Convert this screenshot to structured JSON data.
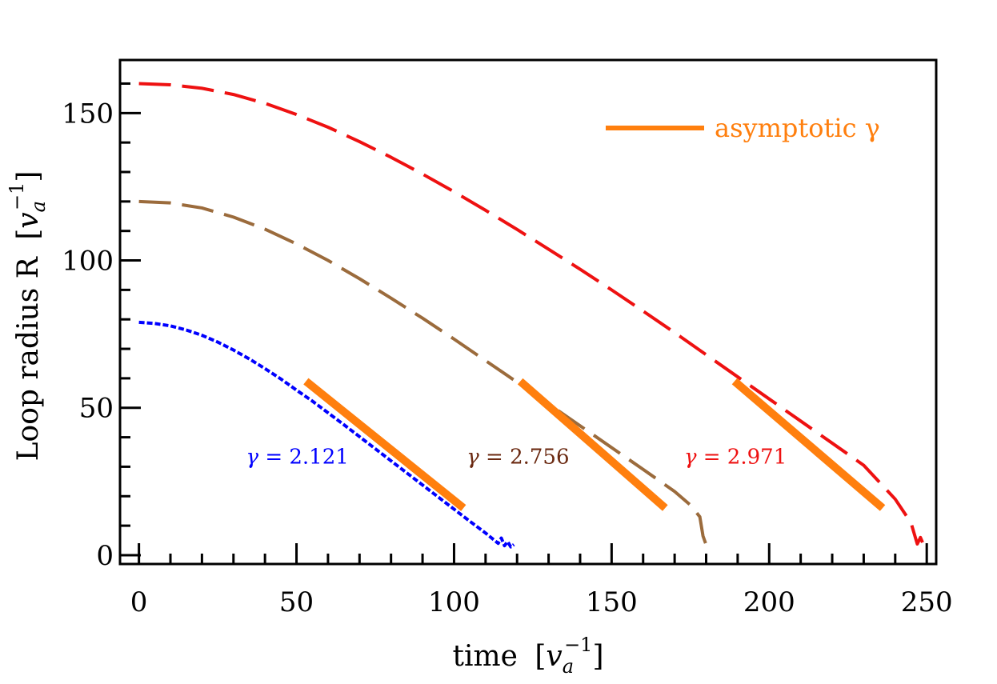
{
  "chart_data": {
    "type": "line",
    "title": "",
    "xlabel": "time",
    "xlabel_unit_base": "v",
    "xlabel_unit_sub": "a",
    "xlabel_unit_sup": "−1",
    "ylabel": "Loop radius R",
    "ylabel_unit_base": "v",
    "ylabel_unit_sub": "a",
    "ylabel_unit_sup": "−1",
    "xlim": [
      -6,
      253
    ],
    "ylim": [
      -3,
      168
    ],
    "xticks": [
      0,
      50,
      100,
      150,
      200,
      250
    ],
    "xtick_labels": [
      "0",
      "50",
      "100",
      "150",
      "200",
      "250"
    ],
    "yticks": [
      0,
      50,
      100,
      150
    ],
    "ytick_labels": [
      "0",
      "50",
      "100",
      "150"
    ],
    "grid": false,
    "legend": {
      "position": "top-right",
      "entries": [
        {
          "name": "asymptotic γ",
          "color": "#ff7f0e"
        }
      ]
    },
    "series": [
      {
        "color": "#0000ff",
        "style": "dotted",
        "x": [
          0,
          5,
          10,
          15,
          20,
          25,
          30,
          35,
          40,
          45,
          50,
          55,
          60,
          65,
          70,
          75,
          80,
          85,
          90,
          95,
          100,
          105,
          110,
          114,
          115,
          116,
          117,
          118,
          119
        ],
        "y": [
          79,
          78.6,
          77.8,
          76.4,
          74.6,
          72.3,
          69.6,
          66.6,
          63.3,
          59.8,
          56.0,
          52.3,
          48.3,
          44.3,
          40.2,
          36.1,
          32.0,
          27.9,
          23.8,
          19.7,
          15.6,
          11.5,
          7.5,
          4.0,
          5.8,
          3.2,
          4.6,
          2.8,
          3.6
        ]
      },
      {
        "color": "#9b6b3c",
        "style": "dashed",
        "x": [
          0,
          10,
          20,
          30,
          40,
          50,
          60,
          70,
          80,
          90,
          100,
          110,
          120,
          130,
          140,
          150,
          160,
          170,
          175,
          178,
          179,
          180,
          181
        ],
        "y": [
          120,
          119.5,
          117.8,
          114.7,
          110.6,
          105.6,
          100,
          93.8,
          87.2,
          80.4,
          73.3,
          66.0,
          58.7,
          51.3,
          43.9,
          36.5,
          29.1,
          21.6,
          17.0,
          13.0,
          6.5,
          3.5,
          1.5
        ]
      },
      {
        "color": "#ee1111",
        "style": "dashed",
        "x": [
          0,
          10,
          20,
          30,
          40,
          50,
          60,
          70,
          80,
          90,
          100,
          110,
          120,
          130,
          140,
          150,
          160,
          170,
          180,
          190,
          200,
          210,
          220,
          230,
          240,
          245,
          247,
          248,
          249
        ],
        "y": [
          160,
          159.6,
          158.4,
          156.3,
          153.3,
          149.5,
          145.2,
          140.3,
          135.0,
          129.3,
          123.3,
          117.0,
          110.5,
          103.8,
          97.0,
          90.0,
          82.8,
          75.5,
          68.0,
          60.5,
          53.0,
          45.5,
          38.0,
          30.5,
          19.0,
          11.0,
          3.8,
          6.0,
          3.5
        ]
      }
    ],
    "fits": [
      {
        "color": "#ff7f0e",
        "x": [
          53,
          103
        ],
        "y": [
          59,
          16
        ]
      },
      {
        "color": "#ff7f0e",
        "x": [
          121,
          167
        ],
        "y": [
          59,
          16
        ]
      },
      {
        "color": "#ff7f0e",
        "x": [
          189,
          236
        ],
        "y": [
          59,
          16
        ]
      }
    ],
    "annotations": [
      {
        "symbol": "γ",
        "text": " = 2.121",
        "color": "#0000ff",
        "x": 34,
        "y": 31
      },
      {
        "symbol": "γ",
        "text": " = 2.756",
        "color": "#6b2a12",
        "x": 104,
        "y": 31
      },
      {
        "symbol": "γ",
        "text": " = 2.971",
        "color": "#ee1111",
        "x": 173,
        "y": 31
      }
    ]
  }
}
